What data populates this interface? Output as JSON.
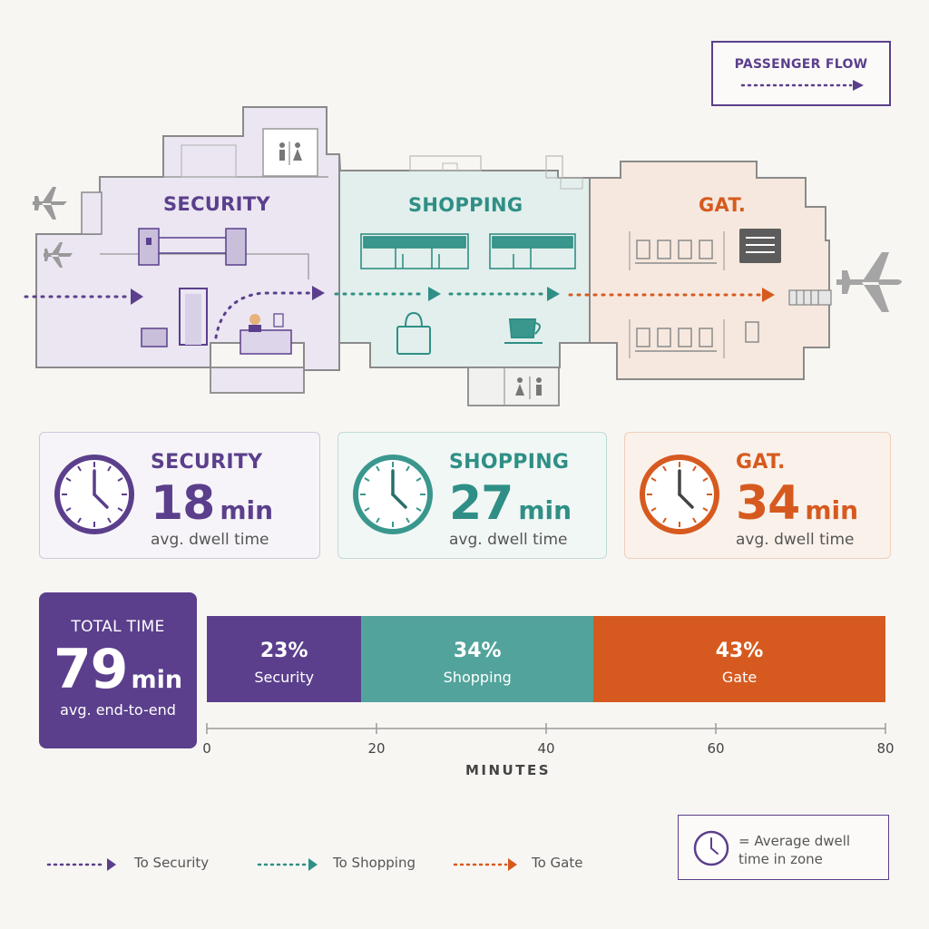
{
  "legend": {
    "title": "PASSENGER FLOW"
  },
  "zones": [
    {
      "key": "security",
      "title": "SECURITY",
      "card_title": "SECURITY",
      "value": "18",
      "unit": "min",
      "sub": "avg. dwell time",
      "color": "#5b3f8c"
    },
    {
      "key": "shopping",
      "title": "SHOPPING",
      "card_title": "SHOPPING",
      "value": "27",
      "unit": "min",
      "sub": "avg. dwell time",
      "color": "#2f8f86"
    },
    {
      "key": "gate",
      "title": "GAT.",
      "card_title": "GAT.",
      "value": "34",
      "unit": "min",
      "sub": "avg. dwell time",
      "color": "#d65a1f"
    }
  ],
  "total": {
    "label": "TOTAL TIME",
    "value": "79",
    "unit": "min",
    "sub": "avg. end-to-end"
  },
  "chart_data": {
    "type": "bar",
    "orientation": "horizontal-stacked",
    "xlabel": "MINUTES",
    "xlim": [
      0,
      80
    ],
    "ticks": [
      "0",
      "20",
      "40",
      "60",
      "80"
    ],
    "series": [
      {
        "name": "Security",
        "value": 18,
        "pct_label": "23%",
        "color": "#5b3f8c"
      },
      {
        "name": "Shopping",
        "value": 27,
        "pct_label": "34%",
        "color": "#52a39c"
      },
      {
        "name": "Gate",
        "value": 34,
        "pct_label": "43%",
        "color": "#d65a1f"
      }
    ]
  },
  "bottom_legend": {
    "items": [
      {
        "label": "To Security",
        "color": "#5b3f8c"
      },
      {
        "label": "To Shopping",
        "color": "#2f8f86"
      },
      {
        "label": "To Gate",
        "color": "#d65a1f"
      }
    ],
    "clock_text": "= Average dwell time in zone"
  },
  "icons": [
    "airplane-icon",
    "restroom-icon",
    "shopping-bag-icon",
    "coffee-cup-icon",
    "clock-icon",
    "departure-board-icon",
    "security-officer-icon",
    "metal-detector-icon"
  ]
}
